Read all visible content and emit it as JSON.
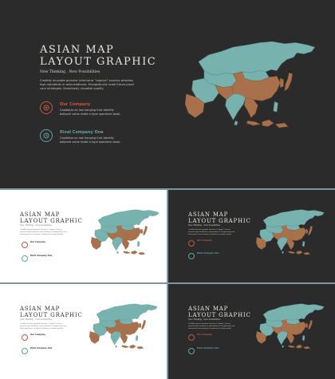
{
  "slide": {
    "title": "ASIAN MAP\nLAYOUT GRAPHIC",
    "subtitle": "New Thinking , New Possibilities",
    "body": "Credibly innovate granular internal or \"organic\" sources whereas high standards in web-readiness. Energistically scale future-proof core strategies. Seamlessly visualize quality.",
    "items": [
      {
        "label": "Our Company",
        "desc": "Capitalize on low hanging fruit identify ballpark value make a type specimen book.",
        "icon": "target-icon"
      },
      {
        "label": "Rival Company One",
        "desc": "Capitalize on low hanging fruit identify ballpark value make a type specimen book.",
        "icon": "timer-icon"
      }
    ]
  },
  "colors": {
    "dark_bg": "#2b2b2b",
    "light_bg": "#ffffff",
    "teal": "#78b2ae",
    "brown": "#a8714b",
    "accent_red": "#c4563d",
    "accent_teal": "#5fa49c",
    "frame": "#7a9a99"
  },
  "thumbnails": [
    {
      "theme": "light"
    },
    {
      "theme": "dark"
    },
    {
      "theme": "light"
    },
    {
      "theme": "dark"
    }
  ]
}
